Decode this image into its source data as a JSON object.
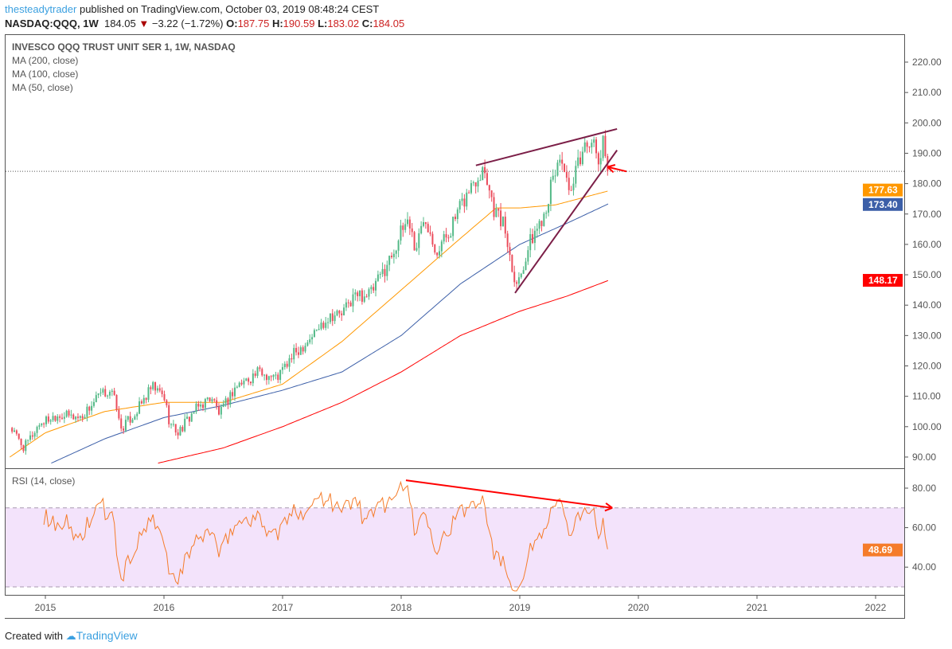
{
  "header": {
    "user": "thesteadytrader",
    "published": "published on TradingView.com, October 03, 2019 08:48:24 CEST",
    "symbol": "NASDAQ:QQQ, 1W",
    "last": "184.05",
    "change": "−3.22 (−1.72%)",
    "o_label": "O:",
    "o": "187.75",
    "h_label": "H:",
    "h": "190.59",
    "l_label": "L:",
    "l": "183.02",
    "c_label": "C:",
    "c": "184.05"
  },
  "legend": {
    "title": "INVESCO QQQ TRUST UNIT SER 1, 1W, NASDAQ",
    "ma200": "MA (200, close)",
    "ma100": "MA (100, close)",
    "ma50": "MA (50, close)",
    "rsi": "RSI (14, close)"
  },
  "footer": {
    "created": "Created with",
    "brand": "TradingView"
  },
  "colors": {
    "up": "#53b987",
    "down": "#eb4d5c",
    "ma50": "#ff9800",
    "ma100": "#3c5fa8",
    "ma200": "#ff0000",
    "rsi": "#f57c2a",
    "trend": "#7b1e47",
    "arrow": "#ff0000"
  },
  "chart_data": [
    {
      "type": "candlestick",
      "title": "QQQ 1W",
      "ylim": [
        86,
        226
      ],
      "y_ticks": [
        "220.00",
        "210.00",
        "200.00",
        "190.00",
        "180.00",
        "170.00",
        "160.00",
        "150.00",
        "140.00",
        "130.00",
        "120.00",
        "110.00",
        "100.00",
        "90.00"
      ],
      "x_ticks": [
        "2015",
        "2016",
        "2017",
        "2018",
        "2019",
        "2020",
        "2021",
        "2022"
      ],
      "price_anchors": [
        [
          2014.7,
          100
        ],
        [
          2014.82,
          93
        ],
        [
          2014.95,
          101
        ],
        [
          2015.1,
          104
        ],
        [
          2015.3,
          103
        ],
        [
          2015.45,
          110
        ],
        [
          2015.55,
          112
        ],
        [
          2015.6,
          107
        ],
        [
          2015.63,
          99
        ],
        [
          2015.75,
          104
        ],
        [
          2015.9,
          113
        ],
        [
          2016.0,
          110
        ],
        [
          2016.05,
          101
        ],
        [
          2016.12,
          98
        ],
        [
          2016.25,
          105
        ],
        [
          2016.4,
          110
        ],
        [
          2016.47,
          104
        ],
        [
          2016.6,
          113
        ],
        [
          2016.8,
          118
        ],
        [
          2016.95,
          116
        ],
        [
          2017.1,
          124
        ],
        [
          2017.25,
          130
        ],
        [
          2017.4,
          137
        ],
        [
          2017.5,
          137
        ],
        [
          2017.6,
          143
        ],
        [
          2017.75,
          144
        ],
        [
          2017.9,
          155
        ],
        [
          2018.06,
          169
        ],
        [
          2018.12,
          158
        ],
        [
          2018.2,
          170
        ],
        [
          2018.3,
          158
        ],
        [
          2018.4,
          164
        ],
        [
          2018.5,
          172
        ],
        [
          2018.6,
          180
        ],
        [
          2018.7,
          186
        ],
        [
          2018.78,
          172
        ],
        [
          2018.87,
          166
        ],
        [
          2018.94,
          152
        ],
        [
          2018.98,
          147
        ],
        [
          2019.08,
          160
        ],
        [
          2019.2,
          170
        ],
        [
          2019.3,
          184
        ],
        [
          2019.35,
          190
        ],
        [
          2019.42,
          174
        ],
        [
          2019.5,
          188
        ],
        [
          2019.56,
          193
        ],
        [
          2019.6,
          196
        ],
        [
          2019.66,
          186
        ],
        [
          2019.7,
          193
        ],
        [
          2019.75,
          184.05
        ]
      ],
      "ma50": [
        [
          2014.7,
          90
        ],
        [
          2015.0,
          98
        ],
        [
          2015.5,
          105
        ],
        [
          2016.0,
          108
        ],
        [
          2016.5,
          108
        ],
        [
          2017.0,
          114
        ],
        [
          2017.5,
          128
        ],
        [
          2018.0,
          145
        ],
        [
          2018.5,
          162
        ],
        [
          2018.8,
          172
        ],
        [
          2019.0,
          172
        ],
        [
          2019.3,
          173
        ],
        [
          2019.75,
          177.63
        ]
      ],
      "ma100": [
        [
          2015.05,
          88
        ],
        [
          2015.5,
          96
        ],
        [
          2016.0,
          103
        ],
        [
          2016.5,
          107
        ],
        [
          2017.0,
          112
        ],
        [
          2017.5,
          118
        ],
        [
          2018.0,
          130
        ],
        [
          2018.5,
          147
        ],
        [
          2019.0,
          160
        ],
        [
          2019.4,
          167
        ],
        [
          2019.75,
          173.4
        ]
      ],
      "ma200": [
        [
          2015.95,
          88
        ],
        [
          2016.5,
          93
        ],
        [
          2017.0,
          100
        ],
        [
          2017.5,
          108
        ],
        [
          2018.0,
          118
        ],
        [
          2018.5,
          130
        ],
        [
          2019.0,
          138
        ],
        [
          2019.4,
          143
        ],
        [
          2019.75,
          148.17
        ]
      ],
      "last_labels": {
        "ma50": "177.63",
        "ma100": "173.40",
        "ma200": "148.17"
      },
      "trendlines": [
        [
          [
            2018.63,
            186
          ],
          [
            2019.82,
            198
          ]
        ],
        [
          [
            2018.96,
            144
          ],
          [
            2019.82,
            191
          ]
        ]
      ],
      "arrow": [
        [
          2019.9,
          184
        ],
        [
          2019.74,
          185.5
        ]
      ]
    },
    {
      "type": "line",
      "title": "RSI (14, close)",
      "ylim": [
        25,
        88
      ],
      "y_ticks": [
        "80.00",
        "60.00",
        "40.00"
      ],
      "band": [
        30,
        70
      ],
      "last": "48.69",
      "arrow": [
        [
          2018.04,
          84
        ],
        [
          2019.78,
          70
        ]
      ]
    }
  ]
}
